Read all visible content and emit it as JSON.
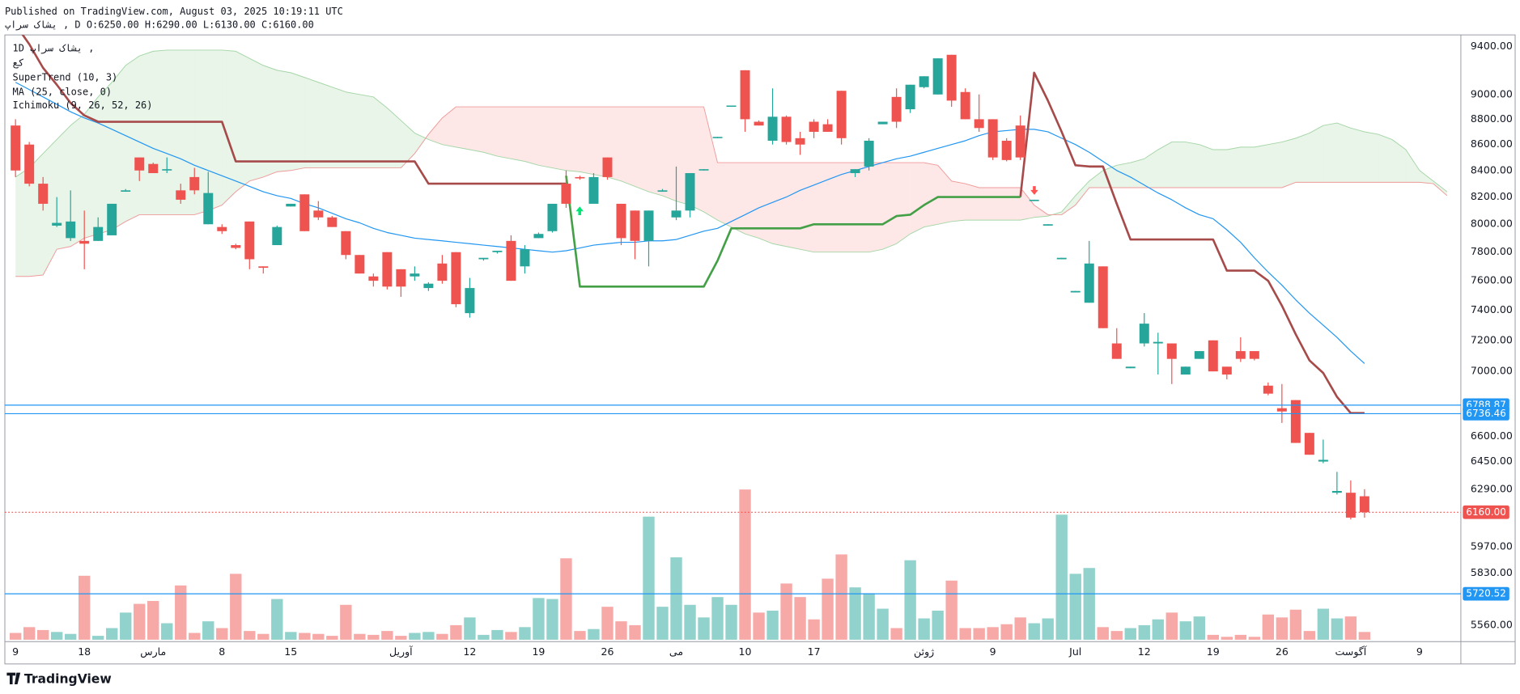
{
  "chart_data": {
    "type": "candlestick",
    "header": [
      "Published on TradingView.com, August 03, 2025 10:19:11 UTC",
      "یشاک سراپ , D O:6250.00 H:6290.00 L:6130.00 C:6160.00"
    ],
    "legend_symbol": "1D  یشاک سراپ ,",
    "legend_exchange": "کع",
    "brand": "TradingView",
    "yscale": "log",
    "grid": false,
    "ylim": [
      5487,
      9500
    ],
    "yticks": [
      {
        "value": 9400,
        "label": "9400.00"
      },
      {
        "value": 9000,
        "label": "9000.00"
      },
      {
        "value": 8800,
        "label": "8800.00"
      },
      {
        "value": 8600,
        "label": "8600.00"
      },
      {
        "value": 8400,
        "label": "8400.00"
      },
      {
        "value": 8200,
        "label": "8200.00"
      },
      {
        "value": 8000,
        "label": "8000.00"
      },
      {
        "value": 7800,
        "label": "7800.00"
      },
      {
        "value": 7600,
        "label": "7600.00"
      },
      {
        "value": 7400,
        "label": "7400.00"
      },
      {
        "value": 7200,
        "label": "7200.00"
      },
      {
        "value": 7000,
        "label": "7000.00"
      },
      {
        "value": 6600,
        "label": "6600.00"
      },
      {
        "value": 6450,
        "label": "6450.00"
      },
      {
        "value": 6290,
        "label": "6290.00"
      },
      {
        "value": 5970,
        "label": "5970.00"
      },
      {
        "value": 5830,
        "label": "5830.00"
      },
      {
        "value": 5560,
        "label": "5560.00"
      }
    ],
    "categories": [
      "9",
      null,
      null,
      null,
      null,
      "18",
      null,
      null,
      null,
      null,
      "مارس",
      null,
      null,
      null,
      null,
      "8",
      null,
      null,
      null,
      null,
      "15",
      null,
      null,
      null,
      null,
      null,
      null,
      null,
      "آوریل",
      null,
      null,
      null,
      null,
      "12",
      null,
      null,
      null,
      null,
      "19",
      null,
      null,
      null,
      null,
      "26",
      null,
      null,
      null,
      null,
      "می",
      null,
      null,
      null,
      null,
      "10",
      null,
      null,
      null,
      null,
      "17",
      null,
      null,
      null,
      null,
      null,
      null,
      null,
      "ژوئن",
      null,
      null,
      null,
      null,
      "9",
      null,
      null,
      null,
      null,
      null,
      "Jul",
      null,
      null,
      null,
      null,
      "12",
      null,
      null,
      null,
      null,
      "19",
      null,
      null,
      null,
      null,
      "26",
      null,
      null,
      null,
      null,
      "آگوست",
      null,
      null,
      null,
      null,
      "9",
      null,
      null
    ],
    "candles": {
      "up_color": "#26a69a",
      "down_color": "#ef5350",
      "open": [
        8750,
        8600,
        8300,
        7990,
        7900,
        7880,
        7880,
        7920,
        8240,
        8500,
        8450,
        8400,
        8250,
        8350,
        8000,
        7980,
        7850,
        8020,
        7700,
        7850,
        8130,
        8220,
        8100,
        8050,
        7950,
        7780,
        7630,
        7800,
        7680,
        7630,
        7550,
        7720,
        7800,
        7380,
        7750,
        7800,
        7880,
        7700,
        7900,
        7950,
        8300,
        8350,
        8150,
        8500,
        8150,
        8100,
        7880,
        8240,
        8050,
        8100,
        8400,
        8650,
        8900,
        9200,
        8780,
        8630,
        8820,
        8650,
        8780,
        8760,
        9030,
        8380,
        8430,
        8760,
        8980,
        8880,
        9060,
        9000,
        9330,
        9020,
        8800,
        8800,
        8630,
        8750,
        8170,
        7990,
        7750,
        7520,
        7450,
        7700,
        7180,
        7020,
        7180,
        7180,
        7180,
        6980,
        7080,
        7200,
        7030,
        7130,
        7130,
        6910,
        6770,
        6820,
        6620,
        6450,
        6270,
        6270,
        6250,
        null,
        null,
        null,
        null,
        null,
        null
      ],
      "high": [
        8800,
        8620,
        8350,
        8200,
        8250,
        8100,
        8050,
        8150,
        8260,
        8500,
        8460,
        8500,
        8300,
        8420,
        8390,
        8000,
        7860,
        8020,
        7700,
        7990,
        8150,
        8220,
        8170,
        8060,
        7950,
        7780,
        7650,
        7800,
        7680,
        7700,
        7590,
        7780,
        7800,
        7620,
        7760,
        7810,
        7920,
        7850,
        7940,
        8150,
        8400,
        8360,
        8380,
        8500,
        8150,
        8100,
        8100,
        8260,
        8430,
        8380,
        8410,
        8660,
        8910,
        9200,
        8790,
        9050,
        8830,
        8700,
        8800,
        8800,
        9030,
        8410,
        8650,
        8780,
        9050,
        9080,
        9150,
        9300,
        9330,
        9050,
        9000,
        8800,
        8650,
        8830,
        8180,
        8000,
        7760,
        7530,
        7880,
        7700,
        7280,
        7030,
        7380,
        7250,
        7180,
        7030,
        7130,
        7200,
        7030,
        7220,
        7130,
        6930,
        6920,
        6820,
        6620,
        6580,
        6390,
        6340,
        6290,
        null,
        null,
        null,
        null,
        null,
        null
      ],
      "low": [
        8350,
        8280,
        8100,
        7980,
        7880,
        7680,
        7880,
        7920,
        8240,
        8320,
        8380,
        8380,
        8150,
        8220,
        8000,
        7930,
        7820,
        7680,
        7650,
        7850,
        8130,
        7950,
        8030,
        7980,
        7750,
        7650,
        7560,
        7540,
        7490,
        7600,
        7530,
        7580,
        7420,
        7350,
        7740,
        7790,
        7600,
        7650,
        7900,
        7940,
        8120,
        8330,
        8150,
        8330,
        7850,
        7750,
        7700,
        8240,
        8030,
        8050,
        8400,
        8650,
        8900,
        8700,
        8750,
        8600,
        8600,
        8520,
        8650,
        8700,
        8600,
        8350,
        8400,
        8760,
        8730,
        8850,
        9050,
        9000,
        8900,
        8800,
        8700,
        8480,
        8470,
        8480,
        8170,
        7990,
        7750,
        7520,
        7450,
        7280,
        7080,
        7020,
        7160,
        6980,
        6920,
        6980,
        7080,
        7000,
        6950,
        7060,
        7070,
        6850,
        6680,
        6560,
        6490,
        6440,
        6260,
        6120,
        6130,
        null,
        null,
        null,
        null,
        null,
        null
      ],
      "close": [
        8400,
        8300,
        8150,
        8010,
        8020,
        7860,
        7980,
        8150,
        8250,
        8400,
        8380,
        8410,
        8180,
        8250,
        8230,
        7950,
        7830,
        7750,
        7690,
        7980,
        8150,
        7950,
        8050,
        7980,
        7780,
        7650,
        7600,
        7560,
        7560,
        7650,
        7580,
        7600,
        7440,
        7550,
        7760,
        7810,
        7600,
        7820,
        7930,
        8150,
        8150,
        8340,
        8350,
        8350,
        7900,
        7880,
        8100,
        8250,
        8100,
        8380,
        8410,
        8660,
        8910,
        8800,
        8750,
        8820,
        8620,
        8600,
        8700,
        8700,
        8650,
        8410,
        8630,
        8780,
        8780,
        9080,
        9150,
        9300,
        8950,
        8800,
        8730,
        8500,
        8480,
        8500,
        8180,
        8000,
        7760,
        7530,
        7720,
        7280,
        7080,
        7030,
        7310,
        7190,
        7080,
        7030,
        7130,
        7000,
        6980,
        7080,
        7080,
        6860,
        6750,
        6560,
        6490,
        6460,
        6280,
        6130,
        6160,
        null,
        null,
        null,
        null,
        null,
        null
      ]
    },
    "volume": {
      "up_color": "#92d2cc",
      "down_color": "#f7a9a7",
      "values": [
        7,
        13,
        10,
        8,
        6,
        66,
        4,
        12,
        28,
        37,
        40,
        17,
        56,
        7,
        19,
        12,
        68,
        9,
        6,
        42,
        8,
        7,
        6,
        4,
        36,
        6,
        5,
        9,
        4,
        7,
        8,
        6,
        15,
        23,
        5,
        10,
        8,
        13,
        43,
        42,
        84,
        9,
        11,
        34,
        19,
        15,
        127,
        34,
        85,
        36,
        23,
        44,
        36,
        155,
        28,
        30,
        58,
        44,
        21,
        63,
        88,
        54,
        48,
        32,
        12,
        82,
        22,
        30,
        61,
        12,
        12,
        13,
        16,
        23,
        17,
        22,
        129,
        68,
        74,
        13,
        9,
        12,
        15,
        21,
        28,
        19,
        24,
        5,
        3,
        5,
        3,
        26,
        23,
        31,
        9,
        32,
        22,
        24,
        8,
        null,
        null,
        null,
        null,
        null,
        null
      ]
    },
    "supertrend": {
      "label": "SuperTrend (10, 3)",
      "up_color": "#43a047",
      "down_color": "#a64a4a",
      "down": [
        9590,
        9420,
        9220,
        9080,
        8930,
        8830,
        8780,
        8780,
        8780,
        8780,
        8780,
        8780,
        8780,
        8780,
        8780,
        8780,
        8470,
        8470,
        8470,
        8470,
        8470,
        8470,
        8470,
        8470,
        8470,
        8470,
        8470,
        8470,
        8470,
        8470,
        8300,
        8300,
        8300,
        8300,
        8300,
        8300,
        8300,
        8300,
        8300,
        8300,
        8300,
        null,
        null,
        null,
        null,
        null,
        null,
        null,
        null,
        null,
        null,
        null,
        null,
        null,
        null,
        null,
        null,
        null,
        null,
        null,
        null,
        null,
        null,
        null,
        null,
        null,
        null,
        null,
        null,
        null,
        null,
        null,
        null,
        8200,
        9180,
        8950,
        8700,
        8440,
        8430,
        8430,
        8150,
        7890,
        7890,
        7890,
        7890,
        7890,
        7890,
        7890,
        7670,
        7670,
        7670,
        7600,
        7430,
        7240,
        7070,
        6990,
        6840,
        6740,
        6740,
        null,
        null,
        null,
        null,
        null,
        null
      ],
      "up": [
        null,
        null,
        null,
        null,
        null,
        null,
        null,
        null,
        null,
        null,
        null,
        null,
        null,
        null,
        null,
        null,
        null,
        null,
        null,
        null,
        null,
        null,
        null,
        null,
        null,
        null,
        null,
        null,
        null,
        null,
        null,
        null,
        null,
        null,
        null,
        null,
        null,
        null,
        null,
        null,
        8360,
        7560,
        7560,
        7560,
        7560,
        7560,
        7560,
        7560,
        7560,
        7560,
        7560,
        7740,
        7970,
        7970,
        7970,
        7970,
        7970,
        7970,
        8000,
        8000,
        8000,
        8000,
        8000,
        8000,
        8060,
        8070,
        8140,
        8200,
        8200,
        8200,
        8200,
        8200,
        8200,
        8200,
        null,
        null,
        null,
        null,
        null,
        null,
        null,
        null,
        null,
        null,
        null,
        null,
        null,
        null,
        null,
        null,
        null,
        null,
        null,
        null,
        null,
        null,
        null,
        null,
        null,
        null,
        null,
        null,
        null,
        null,
        null
      ]
    },
    "ma": {
      "label": "MA (25, close, 0)",
      "color": "#2196f3",
      "values": [
        9100,
        9040,
        8980,
        8920,
        8860,
        8810,
        8770,
        8720,
        8670,
        8620,
        8570,
        8530,
        8490,
        8440,
        8400,
        8360,
        8320,
        8280,
        8240,
        8210,
        8190,
        8150,
        8120,
        8080,
        8040,
        8010,
        7970,
        7940,
        7920,
        7900,
        7890,
        7880,
        7870,
        7860,
        7850,
        7840,
        7830,
        7820,
        7810,
        7800,
        7810,
        7830,
        7850,
        7860,
        7870,
        7870,
        7880,
        7880,
        7890,
        7920,
        7950,
        7970,
        8020,
        8070,
        8120,
        8160,
        8200,
        8250,
        8290,
        8330,
        8370,
        8400,
        8430,
        8460,
        8490,
        8510,
        8540,
        8570,
        8600,
        8630,
        8670,
        8700,
        8710,
        8720,
        8720,
        8700,
        8650,
        8600,
        8540,
        8470,
        8400,
        8350,
        8290,
        8230,
        8180,
        8120,
        8070,
        8040,
        7960,
        7870,
        7760,
        7660,
        7570,
        7470,
        7380,
        7300,
        7220,
        7130,
        7050,
        null,
        null,
        null,
        null,
        null,
        null
      ]
    },
    "ichimoku": {
      "label": "Ichimoku (9, 26, 52, 26)",
      "fill_up": "rgba(76,175,80,0.13)",
      "fill_down": "rgba(244,67,54,0.12)",
      "span_a": {
        "color": "#a5d6a7",
        "values": [
          8350,
          8420,
          8530,
          8640,
          8750,
          8840,
          8980,
          9100,
          9240,
          9320,
          9360,
          9370,
          9370,
          9370,
          9370,
          9370,
          9360,
          9300,
          9240,
          9200,
          9180,
          9140,
          9100,
          9060,
          9020,
          9000,
          8980,
          8890,
          8790,
          8690,
          8640,
          8600,
          8580,
          8560,
          8540,
          8510,
          8490,
          8470,
          8440,
          8420,
          8400,
          8390,
          8370,
          8350,
          8320,
          8280,
          8240,
          8210,
          8170,
          8140,
          8090,
          8030,
          7980,
          7930,
          7900,
          7860,
          7840,
          7820,
          7800,
          7800,
          7800,
          7800,
          7800,
          7820,
          7860,
          7930,
          7980,
          8000,
          8020,
          8030,
          8030,
          8030,
          8030,
          8030,
          8050,
          8060,
          8090,
          8210,
          8320,
          8400,
          8440,
          8460,
          8490,
          8560,
          8620,
          8620,
          8600,
          8560,
          8560,
          8580,
          8580,
          8600,
          8620,
          8650,
          8690,
          8750,
          8770,
          8730,
          8700,
          8680,
          8640,
          8560,
          8400,
          8320,
          8240
        ]
      },
      "span_b": {
        "color": "#ef9a9a",
        "values": [
          7630,
          7630,
          7640,
          7820,
          7840,
          7900,
          7930,
          7960,
          8020,
          8070,
          8070,
          8070,
          8070,
          8070,
          8100,
          8140,
          8240,
          8320,
          8350,
          8390,
          8400,
          8420,
          8420,
          8420,
          8420,
          8420,
          8420,
          8420,
          8420,
          8530,
          8680,
          8810,
          8900,
          8900,
          8900,
          8900,
          8900,
          8900,
          8900,
          8900,
          8900,
          8900,
          8900,
          8900,
          8900,
          8900,
          8900,
          8900,
          8900,
          8900,
          8900,
          8460,
          8460,
          8460,
          8460,
          8460,
          8460,
          8460,
          8460,
          8460,
          8460,
          8460,
          8460,
          8460,
          8460,
          8460,
          8460,
          8440,
          8320,
          8300,
          8270,
          8270,
          8270,
          8270,
          8140,
          8070,
          8070,
          8140,
          8270,
          8270,
          8270,
          8270,
          8270,
          8270,
          8270,
          8270,
          8270,
          8270,
          8270,
          8270,
          8270,
          8270,
          8270,
          8310,
          8310,
          8310,
          8310,
          8310,
          8310,
          8310,
          8310,
          8310,
          8310,
          8300,
          8210
        ]
      }
    },
    "hlines": [
      {
        "value": 6788.87,
        "label": "6788.87",
        "color": "#2196f3"
      },
      {
        "value": 6736.46,
        "label": "6736.46",
        "color": "#2196f3"
      },
      {
        "value": 5720.52,
        "label": "5720.52",
        "color": "#2196f3"
      }
    ],
    "last_price": {
      "value": 6160,
      "label": "6160.00",
      "color": "#ef5350"
    }
  }
}
